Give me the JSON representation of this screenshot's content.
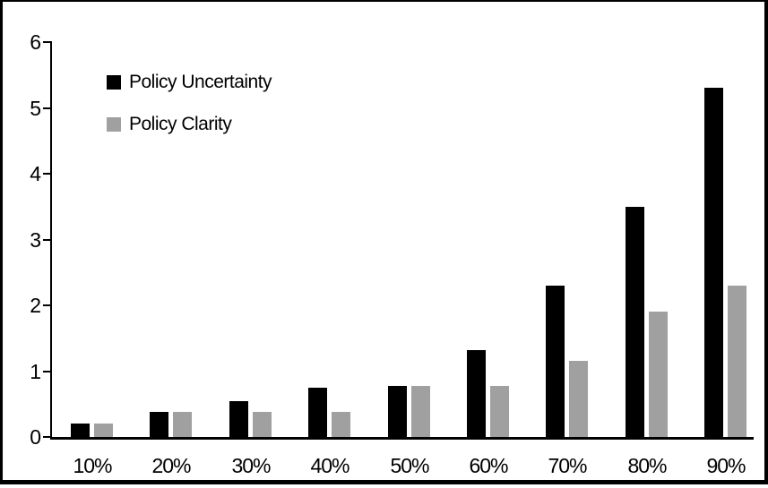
{
  "chart_data": {
    "type": "bar",
    "title": "",
    "xlabel": "",
    "ylabel": "",
    "categories": [
      "10%",
      "20%",
      "30%",
      "40%",
      "50%",
      "60%",
      "70%",
      "80%",
      "90%"
    ],
    "series": [
      {
        "name": "Policy Uncertainty",
        "color": "#000000",
        "values": [
          0.2,
          0.38,
          0.55,
          0.75,
          0.77,
          1.32,
          2.3,
          3.5,
          5.3
        ]
      },
      {
        "name": "Policy Clarity",
        "color": "#a0a0a0",
        "values": [
          0.2,
          0.38,
          0.38,
          0.38,
          0.77,
          0.77,
          1.15,
          1.9,
          2.3
        ]
      }
    ],
    "ylim": [
      0,
      6
    ],
    "yticks": [
      0,
      1,
      2,
      3,
      4,
      5,
      6
    ],
    "grid": false,
    "legend_position": "inside-upper-left",
    "frame_color": "#000000",
    "background_color": "#ffffff"
  }
}
